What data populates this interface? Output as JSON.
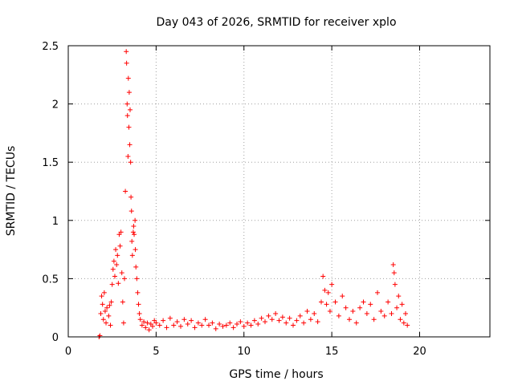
{
  "chart_data": {
    "type": "scatter",
    "title": "Day 043 of 2026, SRMTID for receiver xplo",
    "xlabel": "GPS time / hours",
    "ylabel": "SRMTID / TECUs",
    "xlim": [
      0,
      24
    ],
    "ylim": [
      0,
      2.5
    ],
    "xticks": [
      0,
      5,
      10,
      15,
      20
    ],
    "xtick_labels": [
      "0",
      "5",
      "10",
      "15",
      "20"
    ],
    "yticks": [
      0,
      0.5,
      1,
      1.5,
      2,
      2.5
    ],
    "ytick_labels": [
      "0",
      "0.5",
      "1",
      "1.5",
      "2",
      "2.5"
    ],
    "grid": true,
    "marker": "plus",
    "color": "#ff0000",
    "series": [
      {
        "name": "SRMTID",
        "points": [
          [
            1.75,
            0.0
          ],
          [
            1.8,
            0.01
          ],
          [
            1.85,
            0.2
          ],
          [
            1.9,
            0.35
          ],
          [
            1.95,
            0.28
          ],
          [
            2.0,
            0.15
          ],
          [
            2.05,
            0.38
          ],
          [
            2.1,
            0.22
          ],
          [
            2.15,
            0.12
          ],
          [
            2.2,
            0.25
          ],
          [
            2.3,
            0.18
          ],
          [
            2.35,
            0.27
          ],
          [
            2.4,
            0.1
          ],
          [
            2.45,
            0.3
          ],
          [
            2.5,
            0.45
          ],
          [
            2.55,
            0.58
          ],
          [
            2.6,
            0.65
          ],
          [
            2.65,
            0.52
          ],
          [
            2.7,
            0.75
          ],
          [
            2.75,
            0.62
          ],
          [
            2.8,
            0.7
          ],
          [
            2.85,
            0.46
          ],
          [
            2.9,
            0.88
          ],
          [
            2.95,
            0.78
          ],
          [
            3.0,
            0.9
          ],
          [
            3.05,
            0.55
          ],
          [
            3.1,
            0.3
          ],
          [
            3.15,
            0.12
          ],
          [
            3.2,
            0.5
          ],
          [
            3.25,
            1.25
          ],
          [
            3.3,
            2.45
          ],
          [
            3.32,
            2.35
          ],
          [
            3.35,
            2.0
          ],
          [
            3.37,
            1.9
          ],
          [
            3.4,
            1.55
          ],
          [
            3.42,
            2.22
          ],
          [
            3.45,
            1.8
          ],
          [
            3.47,
            2.1
          ],
          [
            3.5,
            1.65
          ],
          [
            3.52,
            1.95
          ],
          [
            3.55,
            1.5
          ],
          [
            3.57,
            1.2
          ],
          [
            3.6,
            1.08
          ],
          [
            3.62,
            0.82
          ],
          [
            3.65,
            0.7
          ],
          [
            3.7,
            0.9
          ],
          [
            3.72,
            0.95
          ],
          [
            3.75,
            0.88
          ],
          [
            3.8,
            1.0
          ],
          [
            3.82,
            0.75
          ],
          [
            3.85,
            0.6
          ],
          [
            3.9,
            0.5
          ],
          [
            3.95,
            0.38
          ],
          [
            4.0,
            0.28
          ],
          [
            4.05,
            0.2
          ],
          [
            4.1,
            0.15
          ],
          [
            4.2,
            0.1
          ],
          [
            4.3,
            0.13
          ],
          [
            4.4,
            0.08
          ],
          [
            4.5,
            0.12
          ],
          [
            4.6,
            0.06
          ],
          [
            4.7,
            0.11
          ],
          [
            4.8,
            0.09
          ],
          [
            4.9,
            0.14
          ],
          [
            5.0,
            0.12
          ],
          [
            5.2,
            0.1
          ],
          [
            5.4,
            0.14
          ],
          [
            5.6,
            0.08
          ],
          [
            5.8,
            0.16
          ],
          [
            6.0,
            0.1
          ],
          [
            6.2,
            0.13
          ],
          [
            6.4,
            0.09
          ],
          [
            6.6,
            0.15
          ],
          [
            6.8,
            0.11
          ],
          [
            7.0,
            0.14
          ],
          [
            7.2,
            0.08
          ],
          [
            7.4,
            0.12
          ],
          [
            7.6,
            0.1
          ],
          [
            7.8,
            0.15
          ],
          [
            8.0,
            0.1
          ],
          [
            8.2,
            0.12
          ],
          [
            8.4,
            0.07
          ],
          [
            8.6,
            0.11
          ],
          [
            8.8,
            0.09
          ],
          [
            9.0,
            0.1
          ],
          [
            9.2,
            0.12
          ],
          [
            9.4,
            0.08
          ],
          [
            9.6,
            0.11
          ],
          [
            9.8,
            0.13
          ],
          [
            10.0,
            0.09
          ],
          [
            10.2,
            0.12
          ],
          [
            10.4,
            0.1
          ],
          [
            10.6,
            0.14
          ],
          [
            10.8,
            0.11
          ],
          [
            11.0,
            0.16
          ],
          [
            11.2,
            0.13
          ],
          [
            11.4,
            0.18
          ],
          [
            11.6,
            0.15
          ],
          [
            11.8,
            0.2
          ],
          [
            12.0,
            0.14
          ],
          [
            12.2,
            0.17
          ],
          [
            12.4,
            0.12
          ],
          [
            12.6,
            0.16
          ],
          [
            12.8,
            0.1
          ],
          [
            13.0,
            0.14
          ],
          [
            13.2,
            0.18
          ],
          [
            13.4,
            0.12
          ],
          [
            13.6,
            0.22
          ],
          [
            13.8,
            0.15
          ],
          [
            14.0,
            0.2
          ],
          [
            14.2,
            0.13
          ],
          [
            14.4,
            0.3
          ],
          [
            14.5,
            0.52
          ],
          [
            14.6,
            0.4
          ],
          [
            14.7,
            0.28
          ],
          [
            14.8,
            0.38
          ],
          [
            14.9,
            0.22
          ],
          [
            15.0,
            0.45
          ],
          [
            15.2,
            0.3
          ],
          [
            15.4,
            0.18
          ],
          [
            15.6,
            0.35
          ],
          [
            15.8,
            0.25
          ],
          [
            16.0,
            0.15
          ],
          [
            16.2,
            0.22
          ],
          [
            16.4,
            0.12
          ],
          [
            16.6,
            0.25
          ],
          [
            16.8,
            0.3
          ],
          [
            17.0,
            0.2
          ],
          [
            17.2,
            0.28
          ],
          [
            17.4,
            0.15
          ],
          [
            17.6,
            0.38
          ],
          [
            17.8,
            0.22
          ],
          [
            18.0,
            0.18
          ],
          [
            18.2,
            0.3
          ],
          [
            18.4,
            0.2
          ],
          [
            18.5,
            0.62
          ],
          [
            18.55,
            0.55
          ],
          [
            18.6,
            0.45
          ],
          [
            18.7,
            0.25
          ],
          [
            18.8,
            0.35
          ],
          [
            18.9,
            0.15
          ],
          [
            19.0,
            0.28
          ],
          [
            19.1,
            0.12
          ],
          [
            19.2,
            0.2
          ],
          [
            19.3,
            0.1
          ]
        ]
      }
    ]
  }
}
